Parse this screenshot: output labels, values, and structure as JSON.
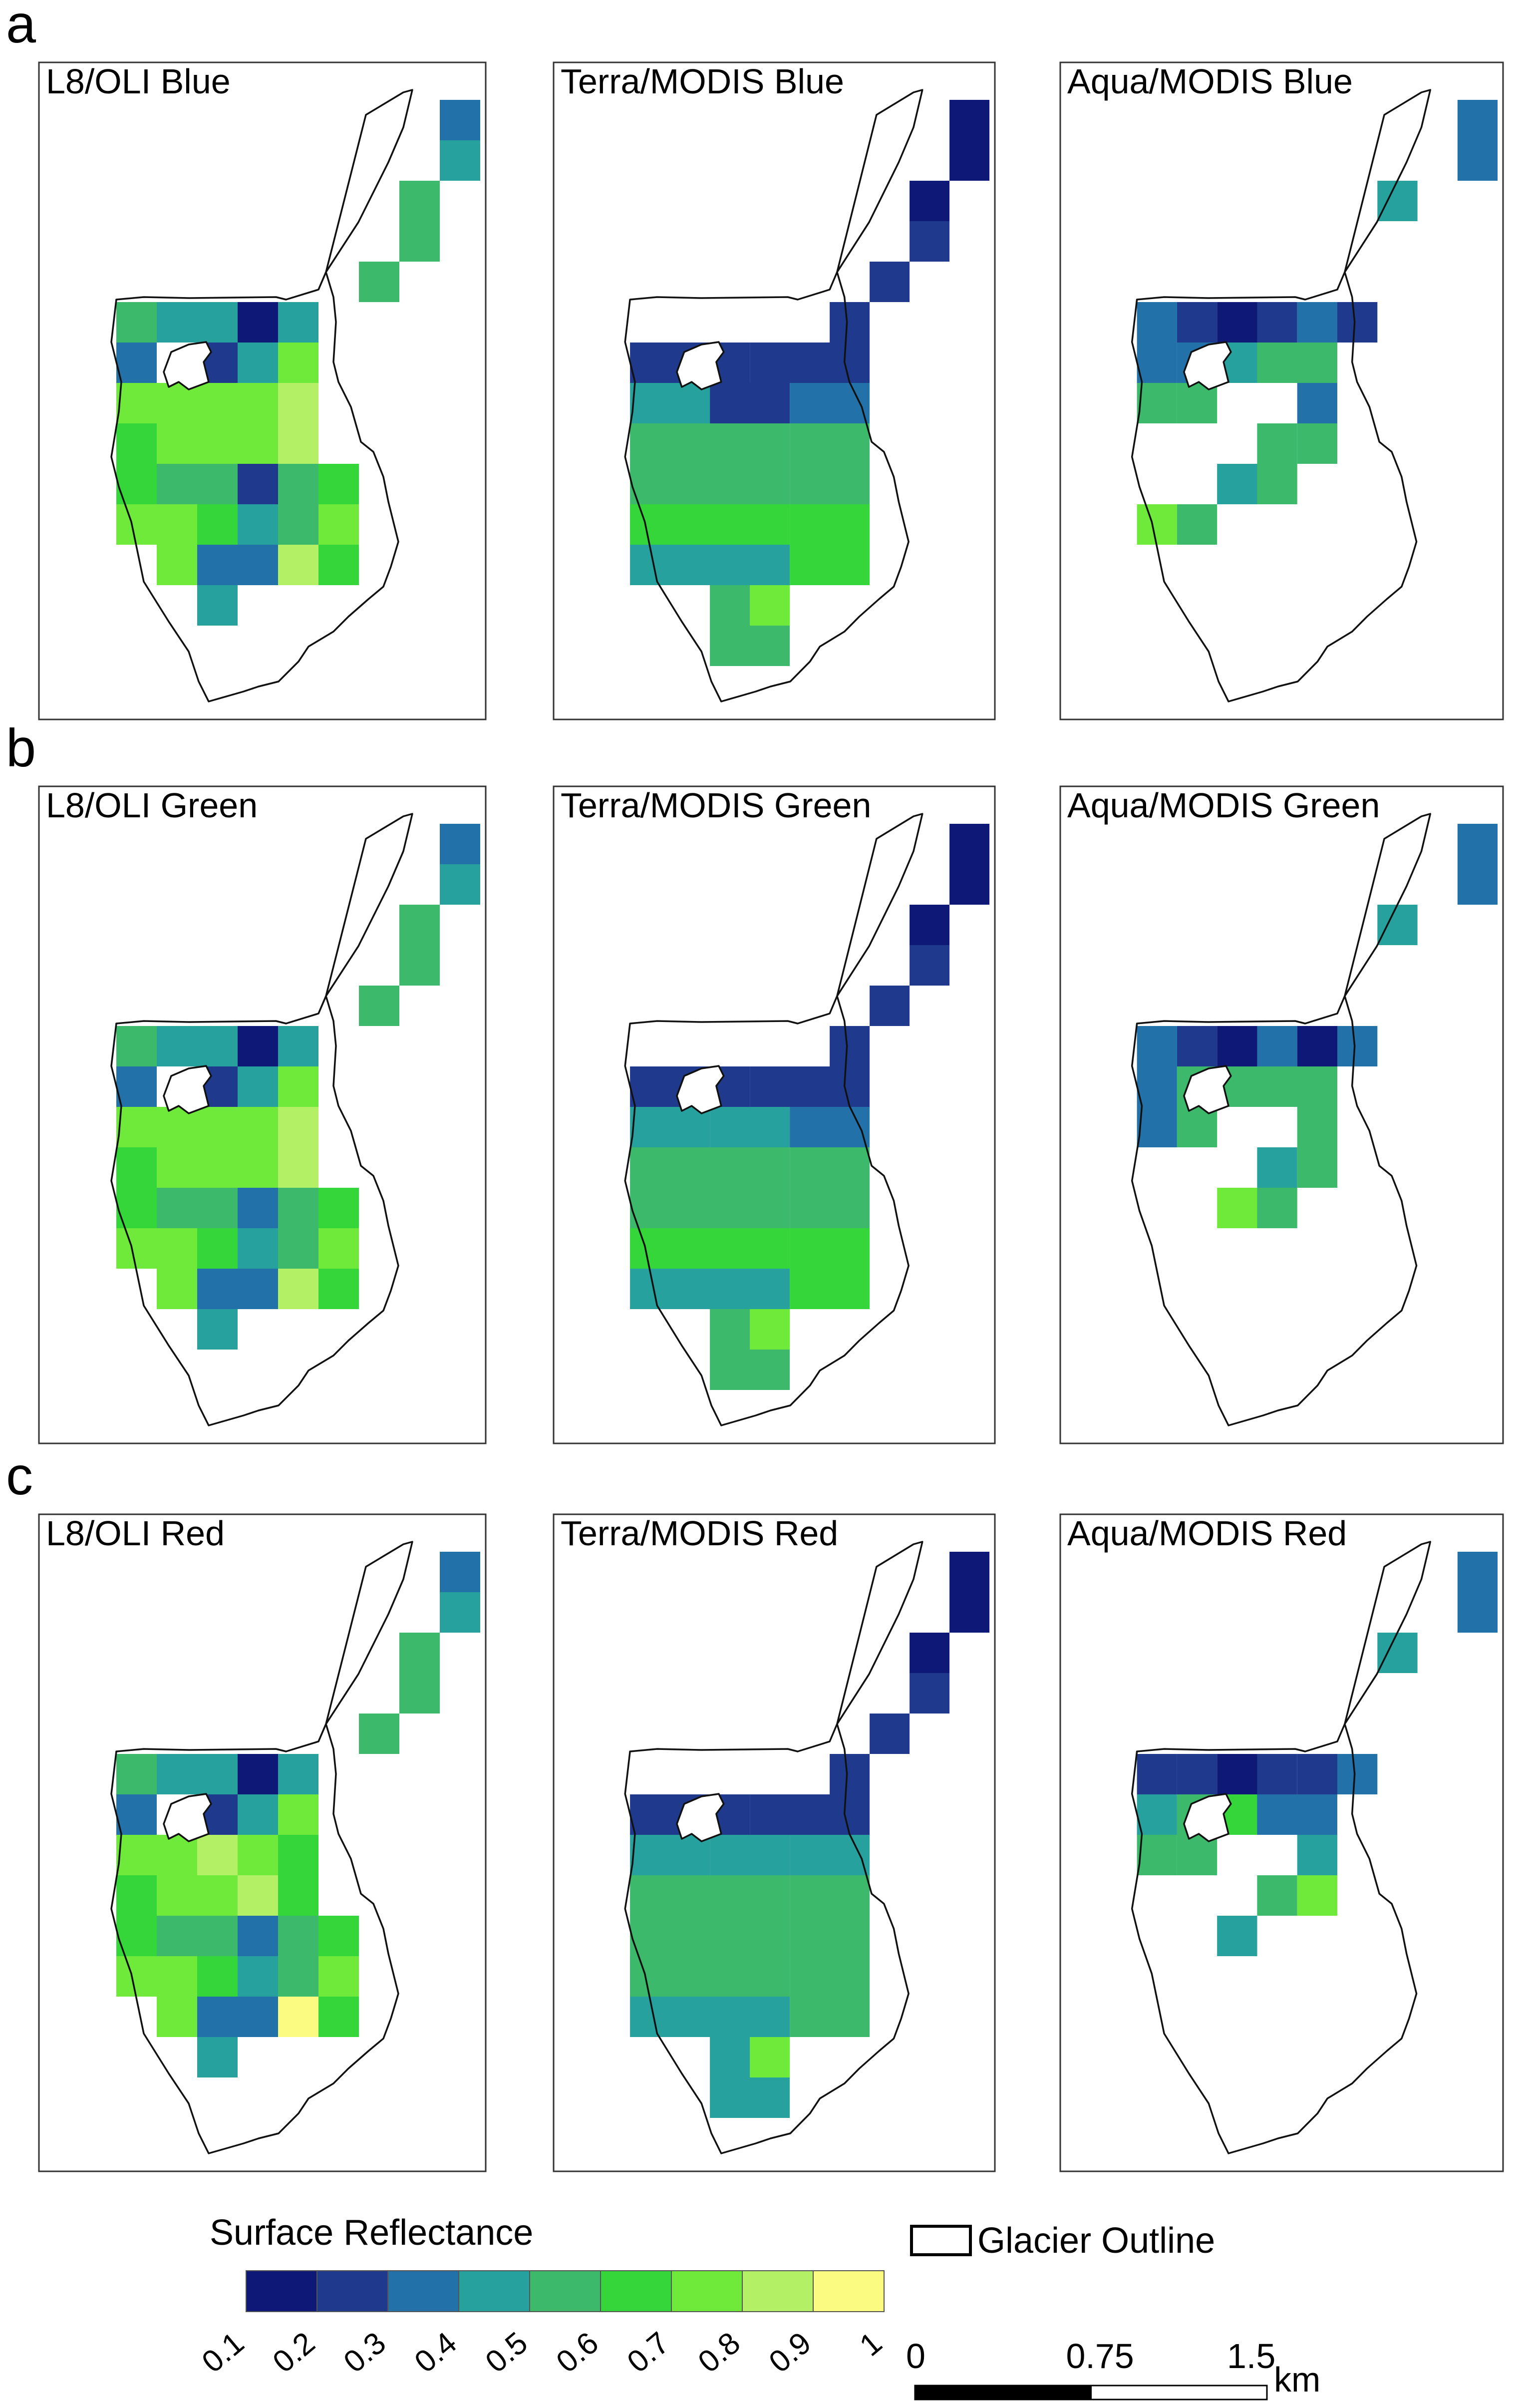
{
  "chart_data": {
    "type": "heatmap",
    "title": "",
    "colorbar": {
      "title": "Surface Reflectance",
      "ticks": [
        "0.1",
        "0.2",
        "0.3",
        "0.4",
        "0.5",
        "0.6",
        "0.7",
        "0.8",
        "0.9",
        "1"
      ],
      "colors": [
        "#0d1877",
        "#1f3a8c",
        "#2271a9",
        "#27a19d",
        "#3cb96a",
        "#35d63a",
        "#6fea3a",
        "#b3f066",
        "#fbfb82"
      ]
    },
    "legend": {
      "outline_label": "Glacier Outline"
    },
    "scalebar": {
      "ticks": [
        "0",
        "0.75",
        "1.5"
      ],
      "unit": "km"
    },
    "rows": [
      {
        "letter": "a",
        "panels": [
          {
            "title": "L8/OLI Blue",
            "grid": "oli",
            "values": [
              0.3,
              0.4,
              0.5,
              0.5,
              0.5,
              0.5,
              0.4,
              0.4,
              0.1,
              0.4,
              0.3,
              0.2,
              0.4,
              0.7,
              0.7,
              0.7,
              0.7,
              0.7,
              0.8,
              0.6,
              0.7,
              0.7,
              0.7,
              0.8,
              0.6,
              0.5,
              0.5,
              0.2,
              0.5,
              0.6,
              0.7,
              0.7,
              0.6,
              0.4,
              0.5,
              0.7,
              0.7,
              0.3,
              0.3,
              0.8,
              0.6,
              0.4
            ]
          },
          {
            "title": "Terra/MODIS Blue",
            "grid": "terra",
            "values": [
              0.1,
              0.1,
              0.2,
              0.2,
              0.2,
              0.2,
              0.2,
              0.4,
              0.2,
              0.3,
              0.5,
              0.5,
              0.4,
              0.6,
              0.6,
              0.5,
              0.7
            ]
          },
          {
            "title": "Aqua/MODIS Blue",
            "grid": "aqua",
            "values": [
              0.3,
              0.4,
              0.3,
              0.2,
              0.1,
              0.2,
              0.3,
              0.2,
              0.3,
              0.3,
              0.4,
              0.5,
              0.5,
              0.5,
              0.3,
              0.5,
              0.5,
              0.4,
              0.5,
              0.7,
              0.5
            ]
          }
        ]
      },
      {
        "letter": "b",
        "panels": [
          {
            "title": "L8/OLI Green",
            "grid": "oli",
            "values": [
              0.3,
              0.4,
              0.5,
              0.5,
              0.5,
              0.5,
              0.4,
              0.4,
              0.1,
              0.4,
              0.3,
              0.2,
              0.4,
              0.7,
              0.7,
              0.7,
              0.7,
              0.7,
              0.8,
              0.6,
              0.7,
              0.7,
              0.7,
              0.8,
              0.6,
              0.5,
              0.5,
              0.3,
              0.5,
              0.6,
              0.7,
              0.7,
              0.6,
              0.4,
              0.5,
              0.7,
              0.7,
              0.3,
              0.3,
              0.8,
              0.6,
              0.4
            ]
          },
          {
            "title": "Terra/MODIS Green",
            "grid": "terra",
            "values": [
              0.1,
              0.1,
              0.2,
              0.2,
              0.2,
              0.2,
              0.2,
              0.4,
              0.4,
              0.3,
              0.5,
              0.5,
              0.4,
              0.6,
              0.6,
              0.5,
              0.7
            ]
          },
          {
            "title": "Aqua/MODIS Green",
            "grid": "aqua",
            "values": [
              0.3,
              0.4,
              0.3,
              0.2,
              0.1,
              0.3,
              0.1,
              0.3,
              0.3,
              0.5,
              0.5,
              0.5,
              0.3,
              0.5,
              0.5,
              0.4,
              0.5,
              0.7,
              0.5
            ]
          }
        ]
      },
      {
        "letter": "c",
        "panels": [
          {
            "title": "L8/OLI Red",
            "grid": "oli",
            "values": [
              0.3,
              0.4,
              0.5,
              0.5,
              0.5,
              0.5,
              0.4,
              0.4,
              0.1,
              0.4,
              0.3,
              0.2,
              0.4,
              0.7,
              0.7,
              0.7,
              0.8,
              0.7,
              0.6,
              0.6,
              0.7,
              0.7,
              0.8,
              0.6,
              0.6,
              0.5,
              0.5,
              0.3,
              0.5,
              0.6,
              0.7,
              0.7,
              0.6,
              0.4,
              0.5,
              0.7,
              0.7,
              0.3,
              0.3,
              0.9,
              0.6,
              0.4
            ]
          },
          {
            "title": "Terra/MODIS Red",
            "grid": "terra",
            "values": [
              0.1,
              0.1,
              0.2,
              0.2,
              0.2,
              0.2,
              0.2,
              0.4,
              0.4,
              0.4,
              0.5,
              0.5,
              0.4,
              0.5,
              0.5,
              0.4,
              0.7
            ]
          },
          {
            "title": "Aqua/MODIS Red",
            "grid": "aqua",
            "values": [
              0.3,
              0.4,
              0.2,
              0.2,
              0.1,
              0.2,
              0.2,
              0.3,
              0.4,
              0.5,
              0.6,
              0.3,
              0.5,
              0.5,
              0.4,
              0.5,
              0.7,
              0.4
            ]
          }
        ]
      }
    ]
  }
}
